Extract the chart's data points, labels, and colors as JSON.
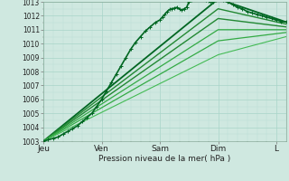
{
  "bg_color": "#cfe8e0",
  "grid_color_major": "#a8d4c8",
  "grid_color_minor": "#b8ddd4",
  "xlabel_text": "Pression niveau de la mer( hPa )",
  "y_min": 1003,
  "y_max": 1013,
  "x_ticks": [
    0,
    24,
    48,
    72,
    96
  ],
  "x_tick_labels": [
    "Jeu",
    "Ven",
    "Sam",
    "Dim",
    "L"
  ],
  "x_min": 0,
  "x_max": 100,
  "main_line": {
    "x": [
      0,
      2,
      4,
      6,
      8,
      10,
      12,
      14,
      16,
      18,
      20,
      22,
      24,
      26,
      28,
      30,
      32,
      34,
      36,
      38,
      40,
      42,
      44,
      46,
      48,
      49,
      50,
      51,
      52,
      53,
      54,
      55,
      56,
      57,
      58,
      59,
      60,
      61,
      62,
      63,
      64,
      65,
      66,
      67,
      68,
      69,
      70,
      71,
      72,
      74,
      76,
      78,
      80,
      82,
      84,
      86,
      88,
      90,
      92,
      94,
      96,
      98,
      100
    ],
    "y": [
      1003.0,
      1003.1,
      1003.2,
      1003.3,
      1003.5,
      1003.7,
      1003.9,
      1004.1,
      1004.4,
      1004.7,
      1005.0,
      1005.5,
      1006.0,
      1006.6,
      1007.2,
      1007.8,
      1008.4,
      1009.0,
      1009.6,
      1010.1,
      1010.5,
      1010.9,
      1011.2,
      1011.5,
      1011.7,
      1011.9,
      1012.1,
      1012.3,
      1012.45,
      1012.5,
      1012.55,
      1012.6,
      1012.5,
      1012.4,
      1012.5,
      1012.6,
      1013.0,
      1013.1,
      1013.2,
      1013.25,
      1013.3,
      1013.25,
      1013.2,
      1013.1,
      1013.05,
      1013.0,
      1013.0,
      1013.1,
      1013.2,
      1013.1,
      1013.0,
      1012.8,
      1012.6,
      1012.5,
      1012.3,
      1012.2,
      1012.1,
      1012.0,
      1011.9,
      1011.8,
      1011.7,
      1011.6,
      1011.55
    ],
    "color": "#006622",
    "lw": 1.2,
    "marker": "+"
  },
  "fan_lines": [
    {
      "x": [
        0,
        72,
        100
      ],
      "y": [
        1003.0,
        1013.2,
        1011.55
      ],
      "color": "#006622",
      "lw": 1.3
    },
    {
      "x": [
        0,
        72,
        100
      ],
      "y": [
        1003.0,
        1012.5,
        1011.4
      ],
      "color": "#228833",
      "lw": 1.0
    },
    {
      "x": [
        0,
        72,
        100
      ],
      "y": [
        1003.0,
        1011.8,
        1011.2
      ],
      "color": "#228833",
      "lw": 1.0
    },
    {
      "x": [
        0,
        72,
        100
      ],
      "y": [
        1003.0,
        1011.0,
        1011.0
      ],
      "color": "#33aa44",
      "lw": 0.9
    },
    {
      "x": [
        0,
        72,
        100
      ],
      "y": [
        1003.0,
        1010.2,
        1010.8
      ],
      "color": "#33aa44",
      "lw": 0.9
    },
    {
      "x": [
        0,
        72,
        100
      ],
      "y": [
        1003.0,
        1009.2,
        1010.5
      ],
      "color": "#44bb55",
      "lw": 0.8
    }
  ]
}
